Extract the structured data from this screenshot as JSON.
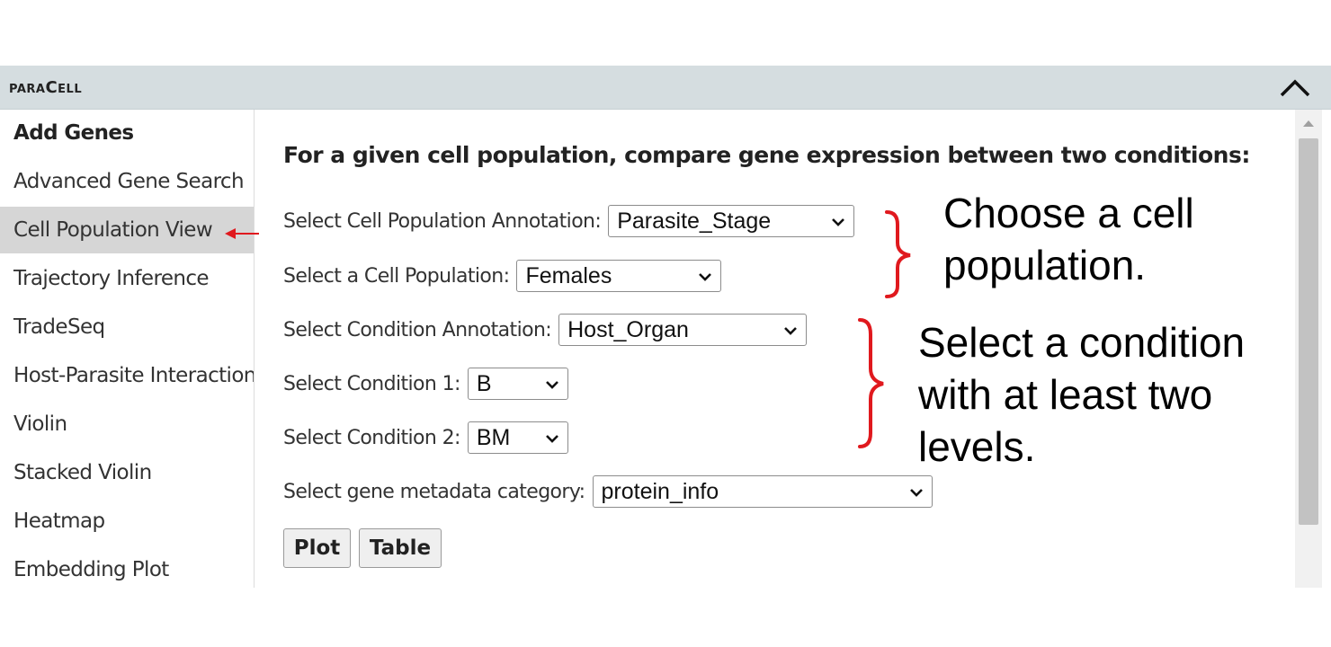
{
  "panel": {
    "title": "paraCell",
    "collapse_icon": "chevron-up-icon"
  },
  "sidebar": {
    "items": [
      {
        "label": "Add Genes",
        "bold": true,
        "active": false
      },
      {
        "label": "Advanced Gene Search",
        "bold": false,
        "active": false
      },
      {
        "label": "Cell Population View",
        "bold": false,
        "active": true
      },
      {
        "label": "Trajectory Inference",
        "bold": false,
        "active": false
      },
      {
        "label": "TradeSeq",
        "bold": false,
        "active": false
      },
      {
        "label": "Host-Parasite Interactions",
        "bold": false,
        "active": false
      },
      {
        "label": "Violin",
        "bold": false,
        "active": false
      },
      {
        "label": "Stacked Violin",
        "bold": false,
        "active": false
      },
      {
        "label": "Heatmap",
        "bold": false,
        "active": false
      },
      {
        "label": "Embedding Plot",
        "bold": false,
        "active": false
      }
    ]
  },
  "main": {
    "heading": "For a given cell population, compare gene expression between two conditions:",
    "fields": {
      "cell_population_annotation": {
        "label": "Select Cell Population Annotation:",
        "value": "Parasite_Stage"
      },
      "cell_population": {
        "label": "Select a Cell Population:",
        "value": "Females"
      },
      "condition_annotation": {
        "label": "Select Condition Annotation:",
        "value": "Host_Organ"
      },
      "condition_1": {
        "label": "Select Condition 1:",
        "value": "B"
      },
      "condition_2": {
        "label": "Select Condition 2:",
        "value": "BM"
      },
      "gene_metadata_category": {
        "label": "Select gene metadata category:",
        "value": "protein_info"
      }
    },
    "buttons": {
      "plot": "Plot",
      "table": "Table"
    }
  },
  "annotations": {
    "cell_population": {
      "line1": "Choose a cell",
      "line2": "population."
    },
    "condition": {
      "line1": "Select a condition",
      "line2": "with at least two",
      "line3": "levels."
    },
    "color": "#e0191e"
  }
}
